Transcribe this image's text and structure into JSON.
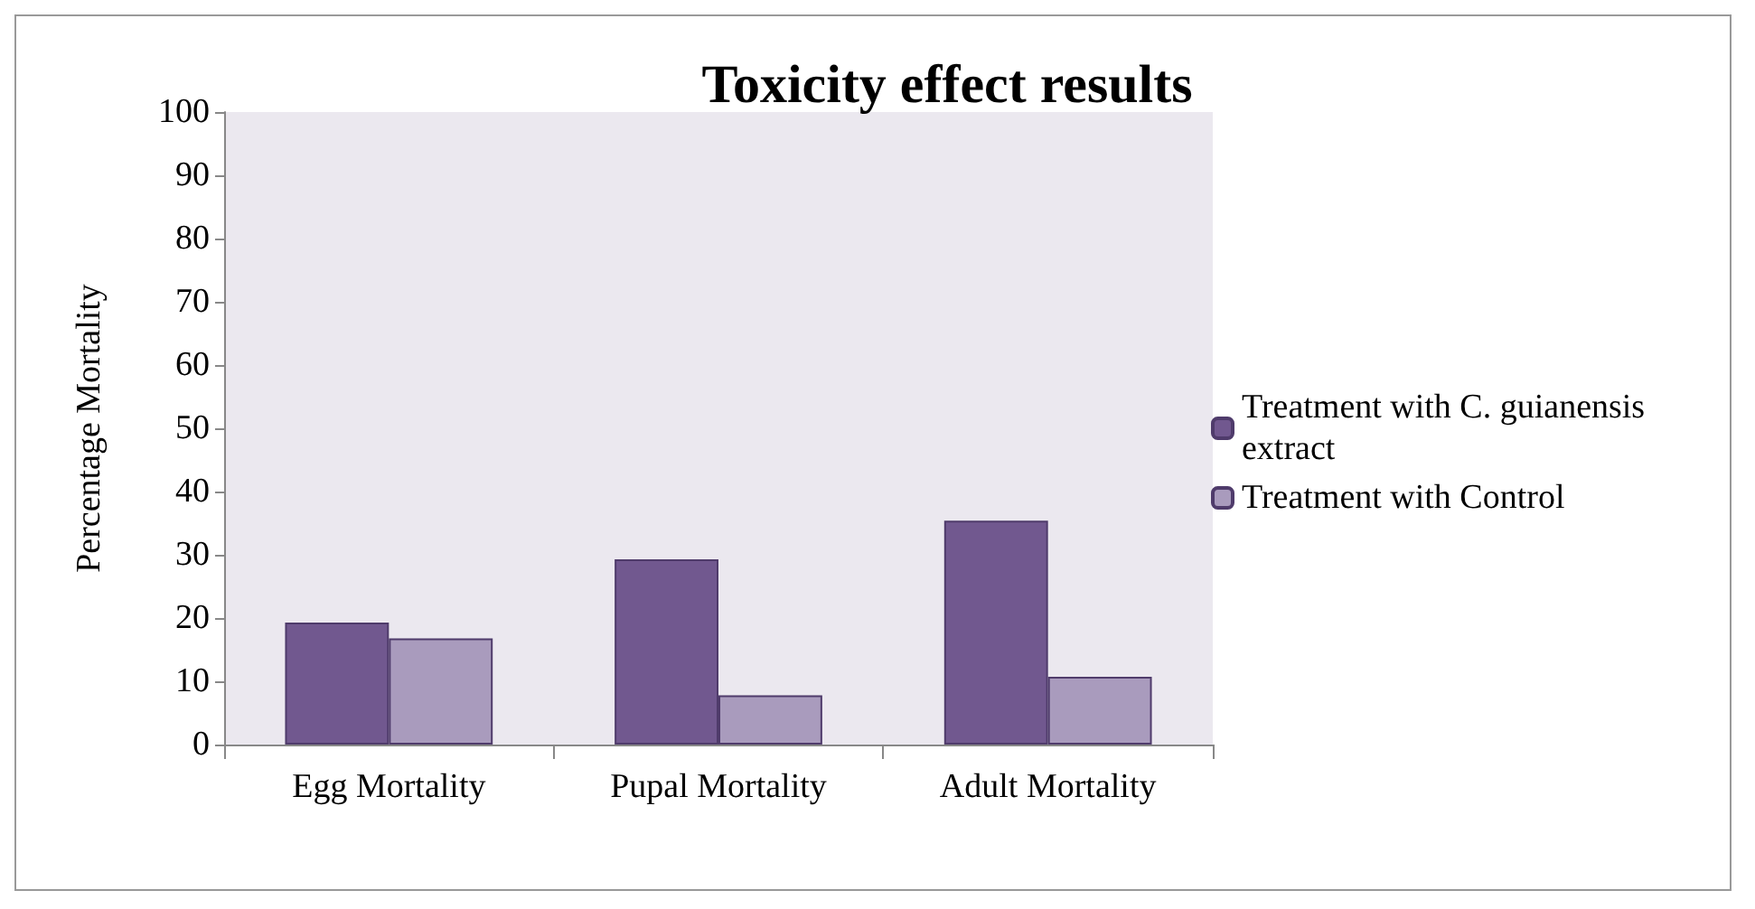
{
  "chart_data": {
    "type": "bar",
    "title": "Toxicity effect results",
    "ylabel": "Percentage Mortality",
    "categories": [
      "Egg Mortality",
      "Pupal Mortality",
      "Adult Mortality"
    ],
    "series": [
      {
        "name": "Treatment with C. guianensis extract",
        "color": "#71588f",
        "values": [
          19.3,
          29.3,
          35.4
        ]
      },
      {
        "name": "Treatment with Control",
        "color": "#a99bbd",
        "values": [
          16.8,
          7.8,
          10.7
        ]
      }
    ],
    "ylim": [
      0,
      100
    ],
    "yticks": [
      0,
      10,
      20,
      30,
      40,
      50,
      60,
      70,
      80,
      90,
      100
    ],
    "grid": false,
    "legend": "right"
  }
}
